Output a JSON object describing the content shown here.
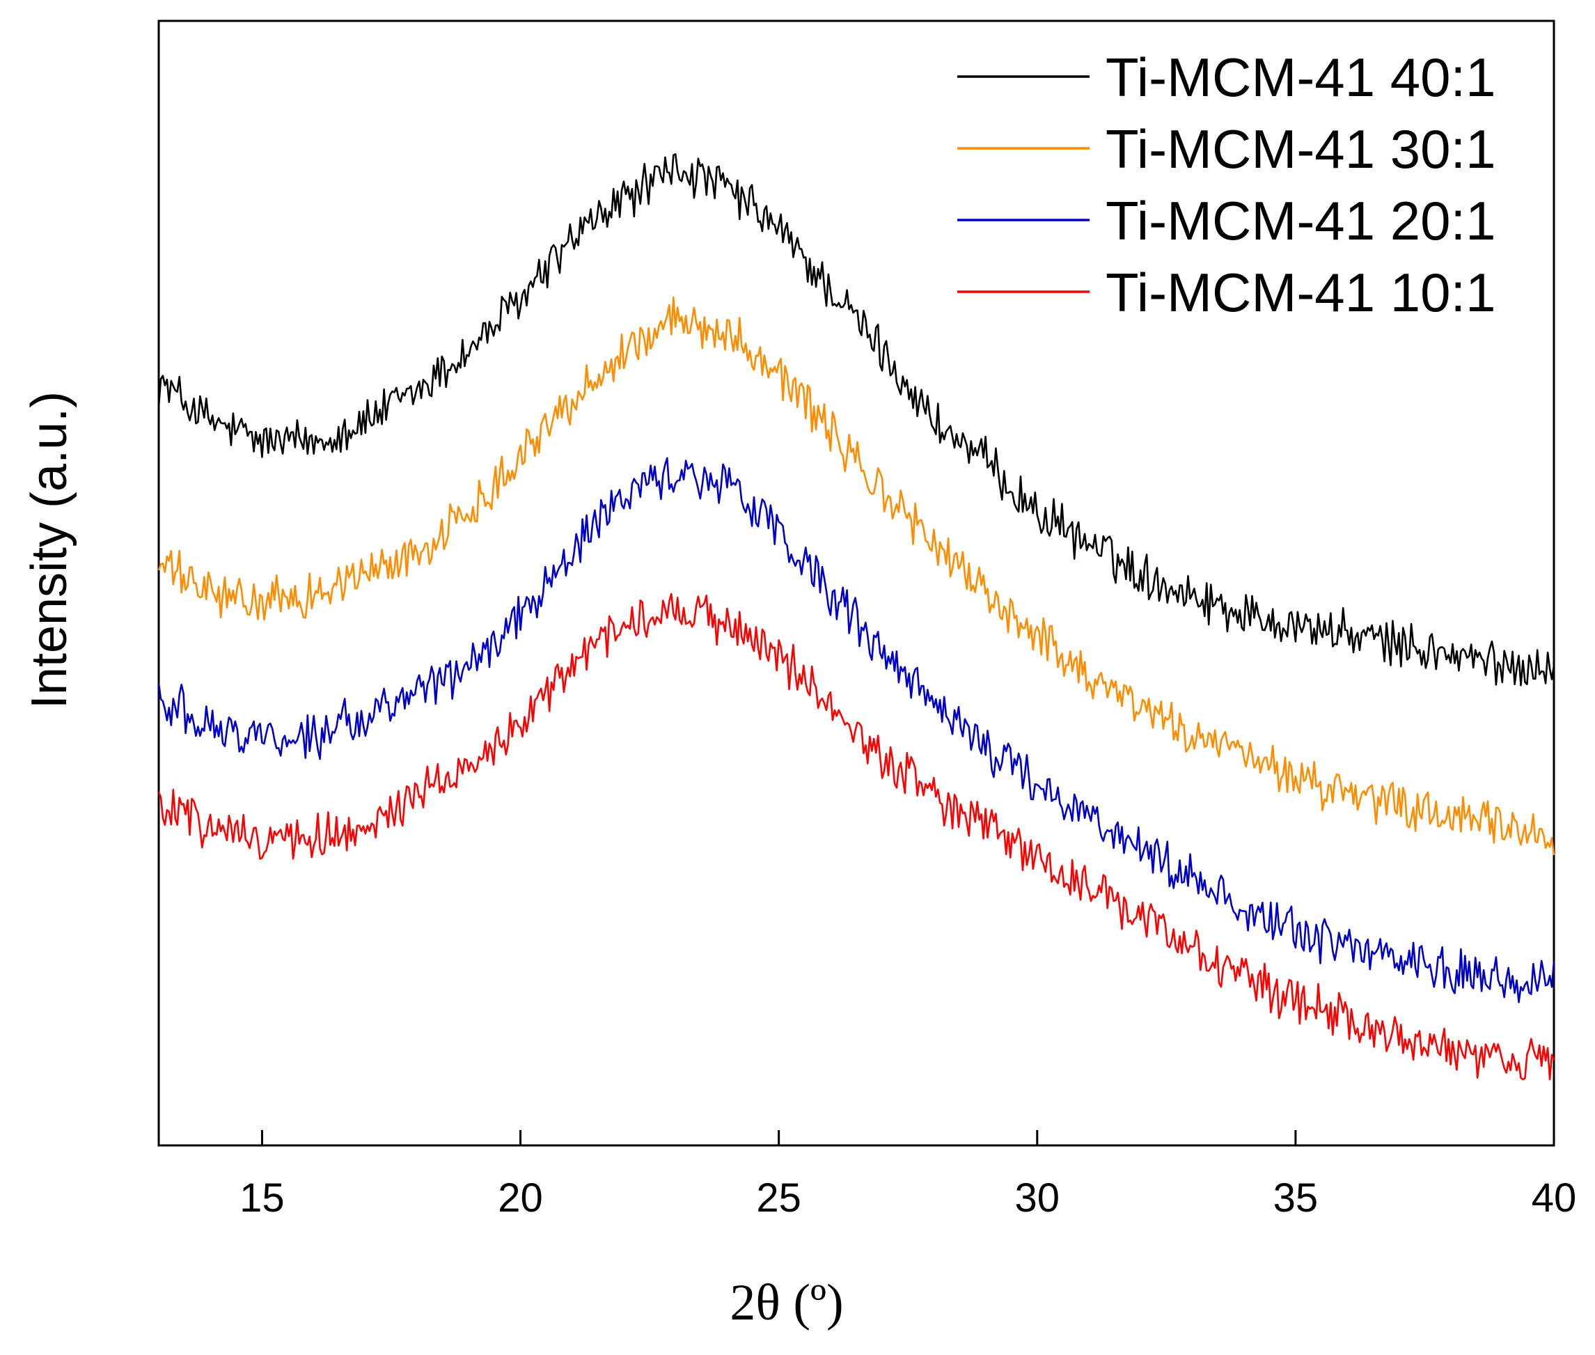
{
  "chart_data": {
    "type": "line",
    "title": "",
    "xlabel": "2θ (º)",
    "ylabel": "Intensity (a.u.)",
    "xlim": [
      13,
      40
    ],
    "ylim": [
      0,
      100
    ],
    "x_ticks": [
      15,
      20,
      25,
      30,
      35,
      40
    ],
    "x_tick_labels": [
      "15",
      "20",
      "25",
      "30",
      "35",
      "40"
    ],
    "y_ticks_shown": false,
    "grid": false,
    "legend_position": "top-right",
    "series": [
      {
        "name": "Ti-MCM-41 40:1",
        "color": "#000000",
        "x": [
          13,
          14,
          15,
          16,
          17,
          18,
          19,
          20,
          21,
          22,
          23,
          24,
          25,
          26,
          27,
          28,
          29,
          30,
          31,
          32,
          33,
          34,
          35,
          36,
          37,
          38,
          39,
          40
        ],
        "values": [
          72,
          68,
          66,
          66,
          68,
          71,
          75,
          80,
          86,
          90,
          93,
          91,
          87,
          81,
          75,
          68,
          64,
          59,
          56,
          53,
          51,
          49,
          48,
          47,
          46,
          45,
          44,
          44
        ]
      },
      {
        "name": "Ti-MCM-41 30:1",
        "color": "#ff8c00",
        "x": [
          13,
          14,
          15,
          16,
          17,
          18,
          19,
          20,
          21,
          22,
          23,
          24,
          25,
          26,
          27,
          28,
          29,
          30,
          31,
          32,
          33,
          34,
          35,
          36,
          37,
          38,
          39,
          40
        ],
        "values": [
          54,
          51,
          50,
          51,
          53,
          55,
          59,
          65,
          70,
          75,
          78,
          77,
          73,
          67,
          61,
          56,
          51,
          47,
          43,
          40,
          37,
          35,
          33,
          31,
          30,
          29,
          28,
          27
        ]
      },
      {
        "name": "Ti-MCM-41 20:1",
        "color": "#0000cc",
        "x": [
          13,
          14,
          15,
          16,
          17,
          18,
          19,
          20,
          21,
          22,
          23,
          24,
          25,
          26,
          27,
          28,
          29,
          30,
          31,
          32,
          33,
          34,
          35,
          36,
          37,
          38,
          39,
          40
        ],
        "values": [
          41,
          38,
          37,
          37,
          39,
          41,
          44,
          49,
          55,
          61,
          63,
          62,
          57,
          51,
          45,
          40,
          36,
          32,
          29,
          26,
          23,
          20,
          18,
          16,
          15,
          14,
          13,
          13
        ]
      },
      {
        "name": "Ti-MCM-41 10:1",
        "color": "#ff0000",
        "x": [
          13,
          14,
          15,
          16,
          17,
          18,
          19,
          20,
          21,
          22,
          23,
          24,
          25,
          26,
          27,
          28,
          29,
          30,
          31,
          32,
          33,
          34,
          35,
          36,
          37,
          38,
          39,
          40
        ],
        "values": [
          30,
          28,
          27,
          27,
          28,
          31,
          34,
          38,
          44,
          48,
          50,
          48,
          45,
          40,
          35,
          31,
          28,
          25,
          22,
          19,
          16,
          13,
          11,
          9,
          7,
          6,
          5,
          5
        ]
      }
    ]
  }
}
